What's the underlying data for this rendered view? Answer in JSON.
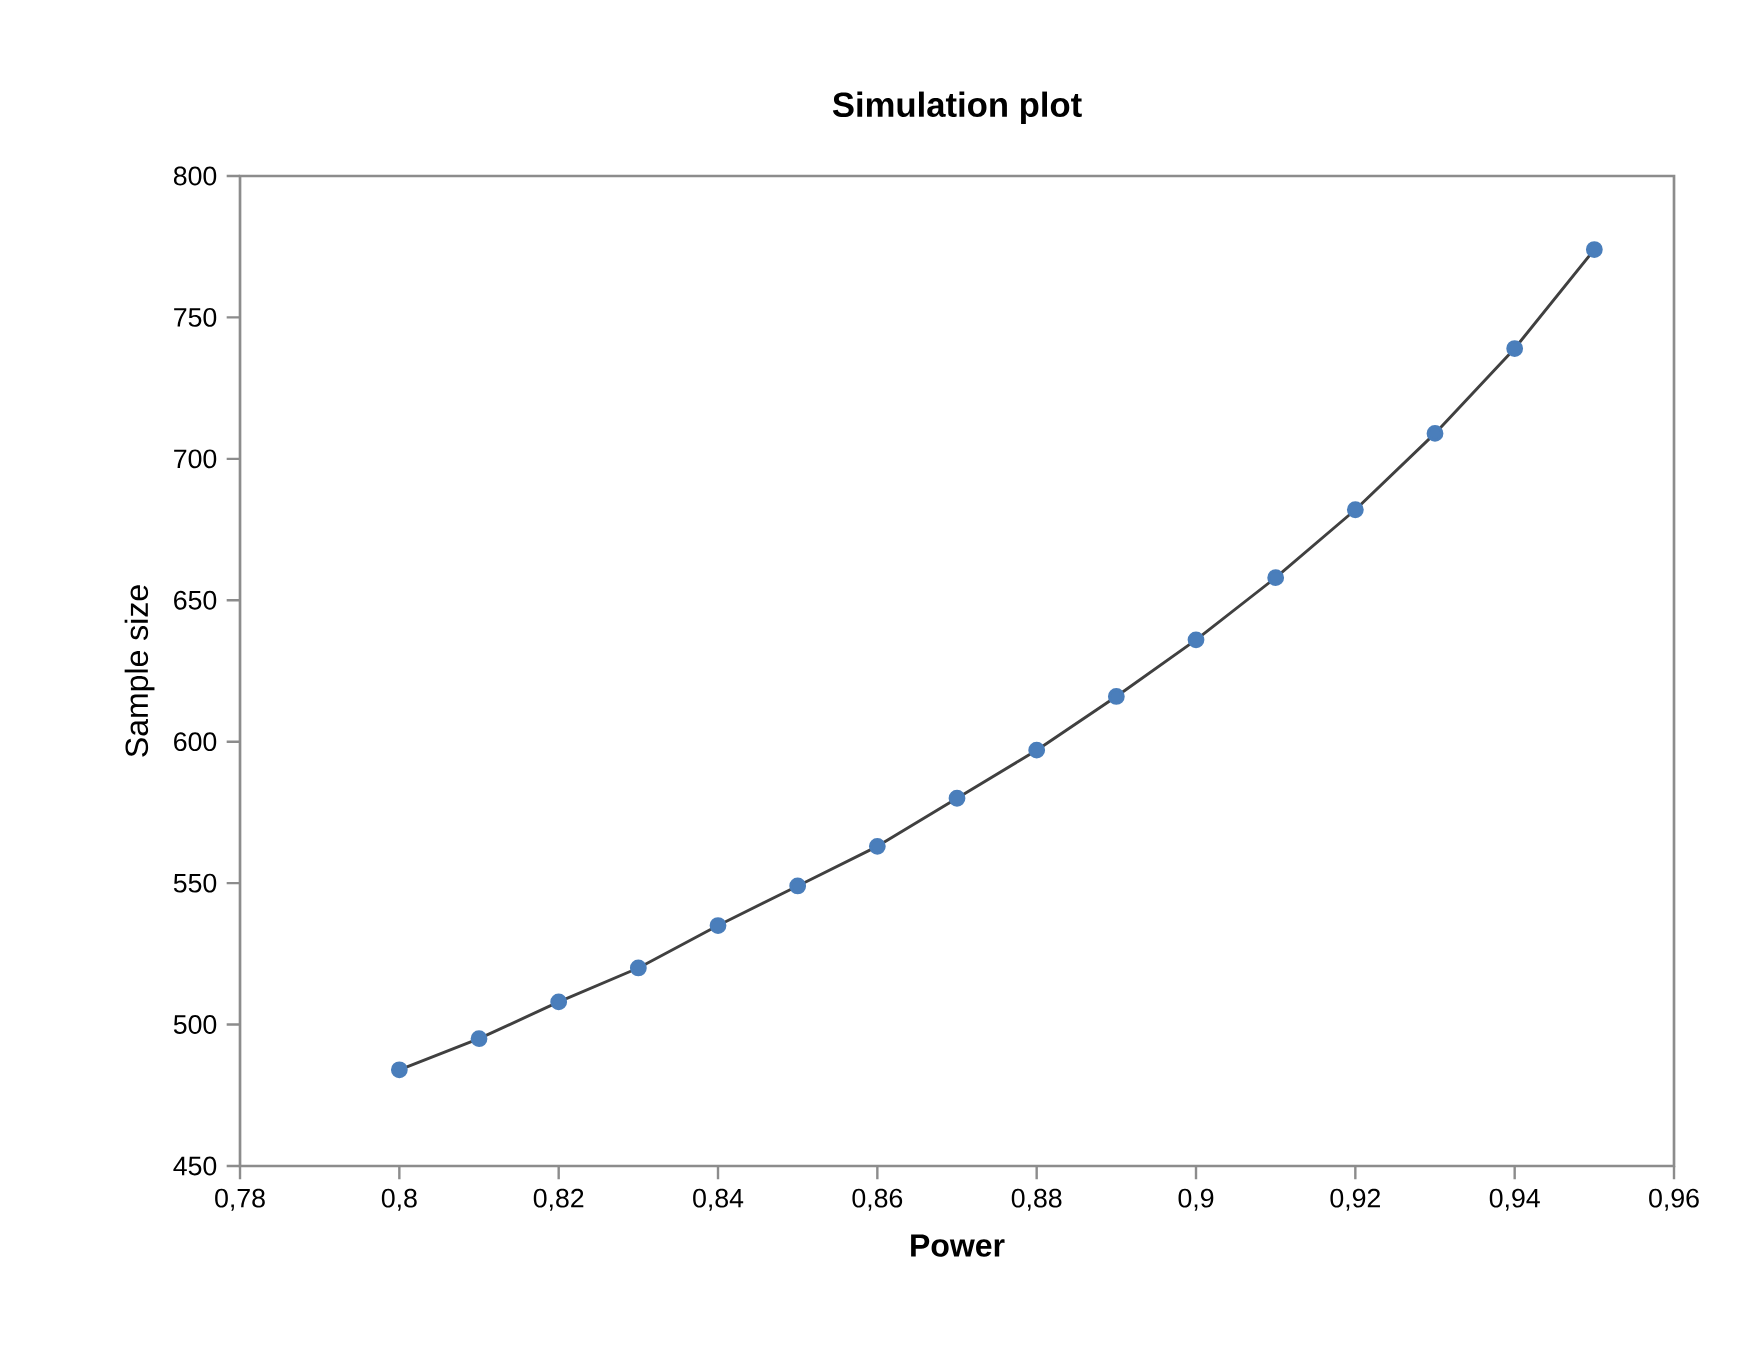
{
  "chart_data": {
    "type": "line",
    "title": "Simulation plot",
    "xlabel": "Power",
    "ylabel": "Sample size",
    "x": [
      0.8,
      0.81,
      0.82,
      0.83,
      0.84,
      0.85,
      0.86,
      0.87,
      0.88,
      0.89,
      0.9,
      0.91,
      0.92,
      0.93,
      0.94,
      0.95
    ],
    "series": [
      {
        "color": "#4a7ebb",
        "values": [
          484,
          495,
          508,
          520,
          535,
          549,
          563,
          580,
          597,
          616,
          636,
          658,
          682,
          709,
          739,
          774
        ]
      }
    ],
    "xlim": [
      0.78,
      0.96
    ],
    "xticks": [
      {
        "value": 0.78,
        "label": "0,78"
      },
      {
        "value": 0.8,
        "label": "0,8"
      },
      {
        "value": 0.82,
        "label": "0,82"
      },
      {
        "value": 0.84,
        "label": "0,84"
      },
      {
        "value": 0.86,
        "label": "0,86"
      },
      {
        "value": 0.88,
        "label": "0,88"
      },
      {
        "value": 0.9,
        "label": "0,9"
      },
      {
        "value": 0.92,
        "label": "0,92"
      },
      {
        "value": 0.94,
        "label": "0,94"
      },
      {
        "value": 0.96,
        "label": "0,96"
      }
    ],
    "ylim": [
      450,
      800
    ],
    "yticks": [
      450,
      500,
      550,
      600,
      650,
      700,
      750,
      800
    ],
    "grid": false,
    "marker": "circle",
    "line_style": "solid"
  }
}
